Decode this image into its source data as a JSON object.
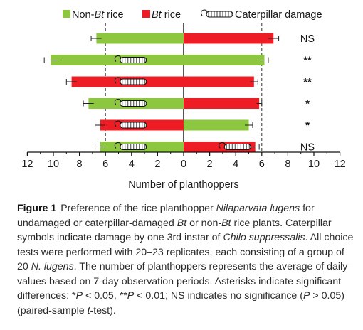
{
  "chart_data": {
    "type": "bar",
    "orientation": "horizontal-diverging",
    "legend": {
      "position": "top",
      "items": [
        {
          "key": "nonbt",
          "pre": "Non-",
          "it": "Bt",
          "post": " rice",
          "color": "#8dc63f"
        },
        {
          "key": "bt",
          "pre": "",
          "it": "Bt",
          "post": " rice",
          "color": "#ee1c24"
        },
        {
          "key": "damage",
          "pre": "",
          "it": "",
          "post": "Caterpillar damage",
          "color": "#000000"
        }
      ]
    },
    "xlabel": "Number of planthoppers",
    "xlim": [
      -12,
      12
    ],
    "xticks": [
      -12,
      -10,
      -8,
      -6,
      -4,
      -2,
      0,
      2,
      4,
      6,
      8,
      10,
      12
    ],
    "tick_labels": [
      "12",
      "10",
      "8",
      "6",
      "4",
      "2",
      "0",
      "2",
      "4",
      "6",
      "8",
      "10",
      "12"
    ],
    "reference_lines": [
      -6,
      6
    ],
    "rows": [
      {
        "left": {
          "type": "nonbt",
          "value": 6.7,
          "err": 0.4,
          "damaged": false
        },
        "right": {
          "type": "bt",
          "value": 6.9,
          "err": 0.4,
          "damaged": false
        },
        "sig": "NS"
      },
      {
        "left": {
          "type": "nonbt",
          "value": 10.2,
          "err": 0.5,
          "damaged": true
        },
        "right": {
          "type": "nonbt",
          "value": 6.2,
          "err": 0.3,
          "damaged": false
        },
        "sig": "**"
      },
      {
        "left": {
          "type": "bt",
          "value": 8.6,
          "err": 0.4,
          "damaged": true
        },
        "right": {
          "type": "bt",
          "value": 5.4,
          "err": 0.3,
          "damaged": false
        },
        "sig": "**"
      },
      {
        "left": {
          "type": "nonbt",
          "value": 7.3,
          "err": 0.4,
          "damaged": true
        },
        "right": {
          "type": "bt",
          "value": 5.8,
          "err": 0.2,
          "damaged": false
        },
        "sig": "*"
      },
      {
        "left": {
          "type": "bt",
          "value": 6.4,
          "err": 0.4,
          "damaged": true
        },
        "right": {
          "type": "nonbt",
          "value": 5.0,
          "err": 0.3,
          "damaged": false
        },
        "sig": "*"
      },
      {
        "left": {
          "type": "nonbt",
          "value": 6.4,
          "err": 0.4,
          "damaged": true
        },
        "right": {
          "type": "bt",
          "value": 5.5,
          "err": 0.3,
          "damaged": true
        },
        "sig": "NS"
      }
    ]
  },
  "caption": {
    "lead": "Figure 1",
    "parts": [
      {
        "t": "Preference of the rice planthopper "
      },
      {
        "t": "Nilaparvata lugens",
        "i": true
      },
      {
        "t": " for undamaged or caterpillar-damaged "
      },
      {
        "t": "Bt",
        "i": true
      },
      {
        "t": " or non-"
      },
      {
        "t": "Bt",
        "i": true
      },
      {
        "t": " rice plants. Caterpillar symbols indicate damage by one 3rd instar of "
      },
      {
        "t": "Chilo suppressalis",
        "i": true
      },
      {
        "t": ". All choice tests were performed with 20–23 replicates, each consisting of a group of 20 "
      },
      {
        "t": "N. lugens",
        "i": true
      },
      {
        "t": ". The number of planthoppers represents the average of daily values based on 7-day observation periods. Asterisks indicate significant differences: *"
      },
      {
        "t": "P",
        "i": true
      },
      {
        "t": " < 0.05, **"
      },
      {
        "t": "P",
        "i": true
      },
      {
        "t": " < 0.01; NS indicates no significance ("
      },
      {
        "t": "P",
        "i": true
      },
      {
        "t": " > 0.05) (paired-sample "
      },
      {
        "t": "t",
        "i": true
      },
      {
        "t": "-test)."
      }
    ]
  }
}
